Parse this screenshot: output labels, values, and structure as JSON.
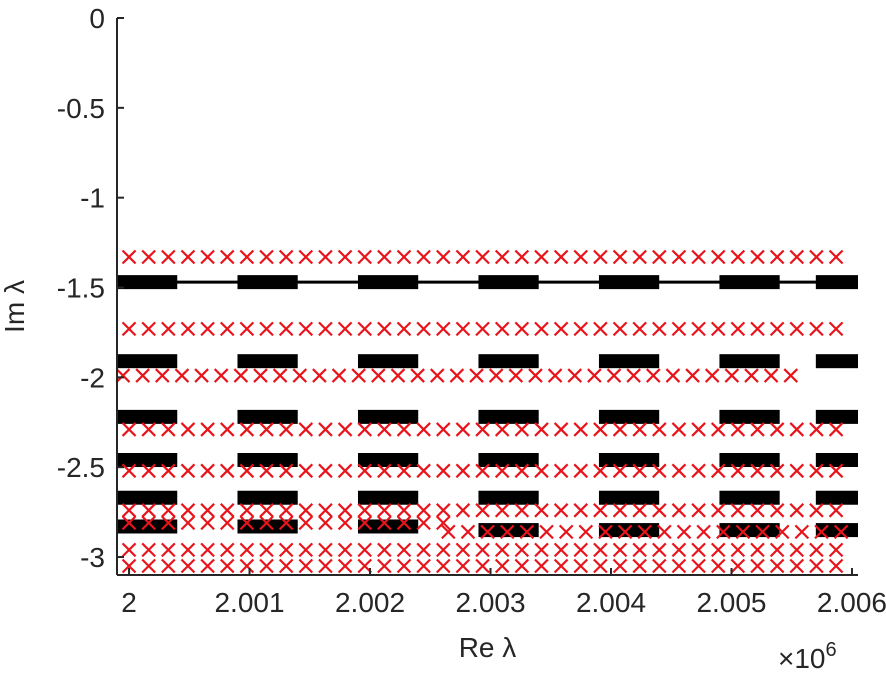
{
  "chart_data": {
    "type": "scatter",
    "xlabel": "Re λ",
    "ylabel": "Im λ",
    "x_exponent": "×10",
    "x_exponent_power": "6",
    "xlim": [
      1999900,
      2006050
    ],
    "ylim": [
      -3.1,
      0
    ],
    "xticks": [
      2000000,
      2001000,
      2002000,
      2003000,
      2004000,
      2005000,
      2006000
    ],
    "xtick_labels": [
      "2",
      "2.001",
      "2.002",
      "2.003",
      "2.004",
      "2.005",
      "2.006"
    ],
    "yticks": [
      0,
      -0.5,
      -1,
      -1.5,
      -2,
      -2.5,
      -3
    ],
    "ytick_labels": [
      "0",
      "-0.5",
      "-1",
      "-1.5",
      "-2",
      "-2.5",
      "-3"
    ],
    "grid": false,
    "colors": {
      "markers": "#e8141b",
      "bands": "#000000",
      "axis": "#262626"
    },
    "series": [
      {
        "marker": "bar",
        "color": "#000000",
        "values": [
          {
            "x0": 1999900,
            "x1": 2006050,
            "y": -1.47
          },
          {
            "x0": 1999900,
            "x1": 2000400,
            "y": -1.47
          },
          {
            "x0": 2000900,
            "x1": 2001400,
            "y": -1.47
          },
          {
            "x0": 2001900,
            "x1": 2002400,
            "y": -1.47
          },
          {
            "x0": 2002900,
            "x1": 2003400,
            "y": -1.47
          },
          {
            "x0": 2003900,
            "x1": 2004400,
            "y": -1.47
          },
          {
            "x0": 2004900,
            "x1": 2005400,
            "y": -1.47
          },
          {
            "x0": 2005700,
            "x1": 2006050,
            "y": -1.47
          },
          {
            "x0": 1999900,
            "x1": 2000400,
            "y": -1.91
          },
          {
            "x0": 2000900,
            "x1": 2001400,
            "y": -1.91
          },
          {
            "x0": 2001900,
            "x1": 2002400,
            "y": -1.91
          },
          {
            "x0": 2002900,
            "x1": 2003400,
            "y": -1.91
          },
          {
            "x0": 2003900,
            "x1": 2004400,
            "y": -1.91
          },
          {
            "x0": 2004900,
            "x1": 2005400,
            "y": -1.91
          },
          {
            "x0": 2005700,
            "x1": 2006050,
            "y": -1.91
          },
          {
            "x0": 1999900,
            "x1": 2000400,
            "y": -2.22
          },
          {
            "x0": 2000900,
            "x1": 2001400,
            "y": -2.22
          },
          {
            "x0": 2001900,
            "x1": 2002400,
            "y": -2.22
          },
          {
            "x0": 2002900,
            "x1": 2003400,
            "y": -2.22
          },
          {
            "x0": 2003900,
            "x1": 2004400,
            "y": -2.22
          },
          {
            "x0": 2004900,
            "x1": 2005400,
            "y": -2.22
          },
          {
            "x0": 2005700,
            "x1": 2006050,
            "y": -2.22
          },
          {
            "x0": 1999900,
            "x1": 2000400,
            "y": -2.46
          },
          {
            "x0": 2000900,
            "x1": 2001400,
            "y": -2.46
          },
          {
            "x0": 2001900,
            "x1": 2002400,
            "y": -2.46
          },
          {
            "x0": 2002900,
            "x1": 2003400,
            "y": -2.46
          },
          {
            "x0": 2003900,
            "x1": 2004400,
            "y": -2.46
          },
          {
            "x0": 2004900,
            "x1": 2005400,
            "y": -2.46
          },
          {
            "x0": 2005700,
            "x1": 2006050,
            "y": -2.46
          },
          {
            "x0": 1999900,
            "x1": 2000400,
            "y": -2.67
          },
          {
            "x0": 2000900,
            "x1": 2001400,
            "y": -2.67
          },
          {
            "x0": 2001900,
            "x1": 2002400,
            "y": -2.67
          },
          {
            "x0": 2002900,
            "x1": 2003400,
            "y": -2.67
          },
          {
            "x0": 2003900,
            "x1": 2004400,
            "y": -2.67
          },
          {
            "x0": 2004900,
            "x1": 2005400,
            "y": -2.67
          },
          {
            "x0": 2005700,
            "x1": 2006050,
            "y": -2.67
          },
          {
            "x0": 1999900,
            "x1": 2000400,
            "y": -2.83
          },
          {
            "x0": 2000900,
            "x1": 2001400,
            "y": -2.83
          },
          {
            "x0": 2001900,
            "x1": 2002400,
            "y": -2.83
          },
          {
            "x0": 2002900,
            "x1": 2003400,
            "y": -2.85
          },
          {
            "x0": 2003900,
            "x1": 2004400,
            "y": -2.85
          },
          {
            "x0": 2004900,
            "x1": 2005400,
            "y": -2.85
          },
          {
            "x0": 2005700,
            "x1": 2006050,
            "y": -2.85
          }
        ]
      },
      {
        "marker": "x",
        "color": "#e8141b",
        "rows": [
          {
            "y": -1.33,
            "x_start": 2000000,
            "x_end": 2006000,
            "step": 163
          },
          {
            "y": -1.73,
            "x_start": 2000000,
            "x_end": 2006000,
            "step": 163
          },
          {
            "y": -1.99,
            "x_start": 1999950,
            "x_end": 2005600,
            "step": 163
          },
          {
            "y": -2.29,
            "x_start": 2000000,
            "x_end": 2006000,
            "step": 163
          },
          {
            "y": -2.52,
            "x_start": 2000000,
            "x_end": 2006000,
            "step": 163
          },
          {
            "y": -2.74,
            "x_start": 2000000,
            "x_end": 2006000,
            "step": 163
          },
          {
            "y": -2.81,
            "x_start": 2000000,
            "x_end": 2002650,
            "step": 163
          },
          {
            "y": -2.86,
            "x_start": 2002650,
            "x_end": 2006000,
            "step": 163
          },
          {
            "y": -2.96,
            "x_start": 2000000,
            "x_end": 2006000,
            "step": 163
          },
          {
            "y": -3.05,
            "x_start": 2000000,
            "x_end": 2006000,
            "step": 163
          }
        ]
      }
    ]
  }
}
